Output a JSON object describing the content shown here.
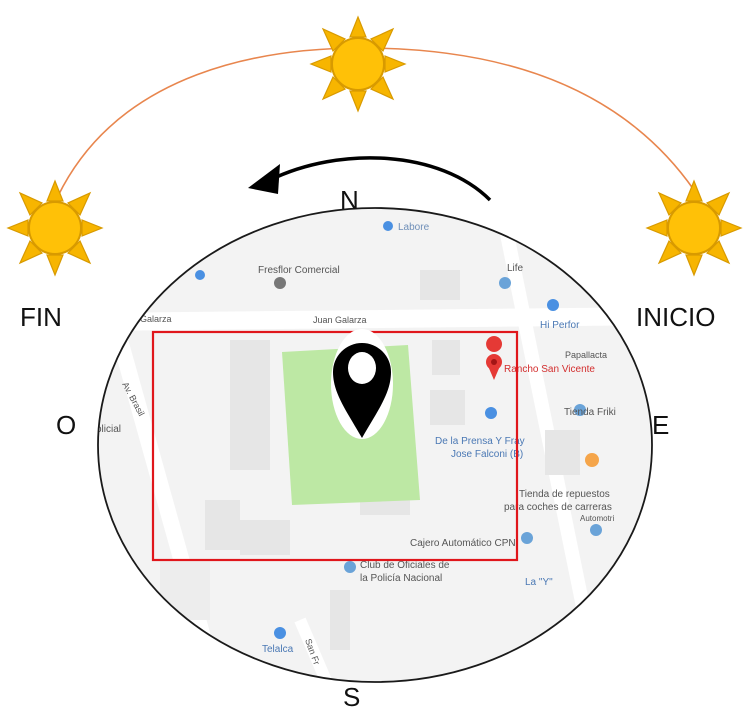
{
  "compass": {
    "north": "N",
    "south": "S",
    "east": "E",
    "west": "O"
  },
  "sun_path": {
    "start_label": "INICIO",
    "end_label": "FIN"
  },
  "map": {
    "labels": {
      "laborer": "Labore",
      "fresflor": "Fresflor Comercial",
      "life": "Life",
      "galarza_left": "Galarza",
      "juan_galarza": "Juan Galarza",
      "hi_perfo": "Hi Perfor",
      "papallacta": "Papallacta",
      "rancho": "Rancho San Vicente",
      "av_brasil": "Av. Brasil",
      "policial": "olicial",
      "tienda_friki": "Tienda Friki",
      "prensa_1": "De la Prensa Y Fray",
      "prensa_2": "Jose Falconi (B)",
      "repuestos_1": "Tienda de repuestos",
      "repuestos_2": "para coches de carreras",
      "automotri": "Automotri",
      "cajero": "Cajero Automático CPN",
      "club_1": "Club de Oficiales de",
      "club_2": "la Policía Nacional",
      "la_y": "La \"Y\"",
      "telalca": "Telalca",
      "san_fr": "San Fr"
    }
  },
  "colors": {
    "sun_fill": "#FFC107",
    "sun_ray": "#F7B500",
    "sun_stroke": "#D89A00",
    "arc": "#E8864E",
    "rect_border": "#E0161B",
    "park": "#BDE8A4",
    "map_bg": "#F3F3F3",
    "pin": "#000000",
    "red_pin": "#E53935",
    "poi_blue": "#4A90E2",
    "poi_orange": "#F5A54A"
  },
  "icons": [
    "sun-icon",
    "location-pin-icon",
    "rotation-arrow-icon"
  ]
}
